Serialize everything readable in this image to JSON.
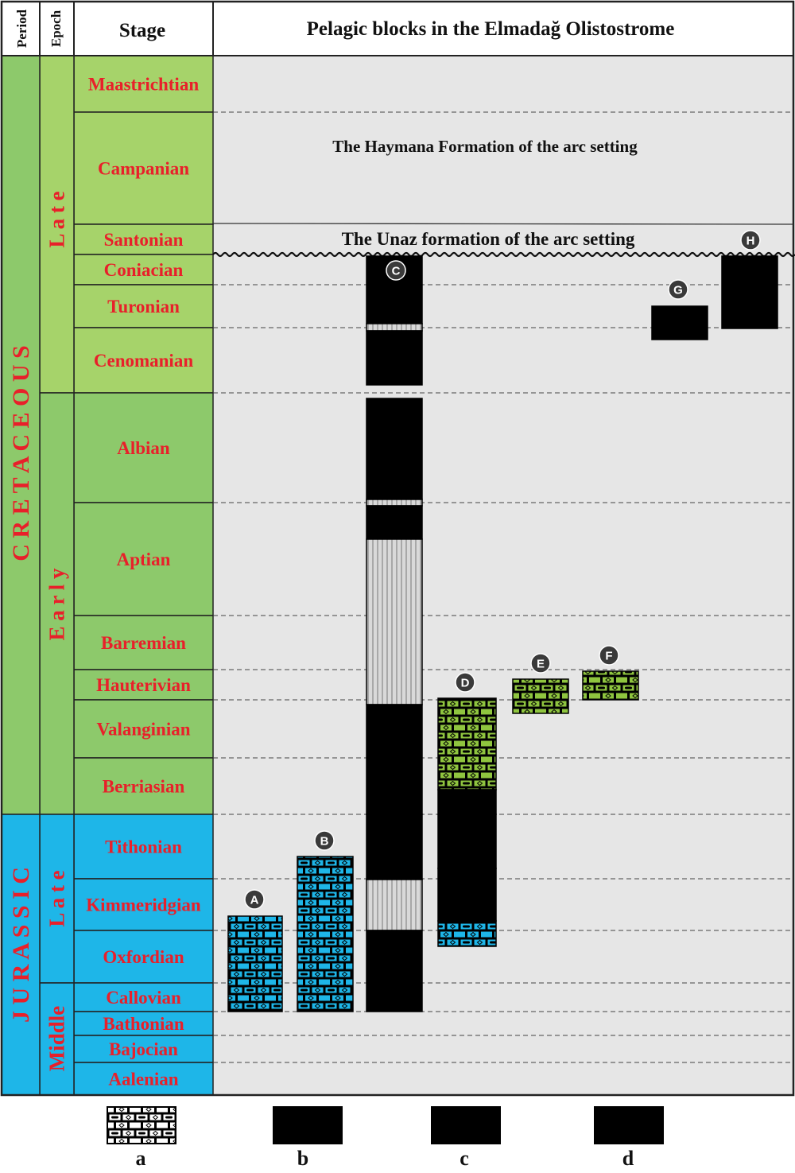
{
  "header": {
    "period": "Period",
    "epoch": "Epoch",
    "stage": "Stage",
    "title": "Pelagic blocks in the Elmadağ Olistostrome"
  },
  "periods": [
    {
      "key": "cretaceous",
      "label": "C R E T A C E O U S",
      "color": "#8dc96b"
    },
    {
      "key": "jurassic",
      "label": "J U R A S S I C",
      "color": "#1eb6e8"
    }
  ],
  "epochs": [
    {
      "key": "late-cretaceous",
      "label": "L a t e",
      "color": "#a6d36a"
    },
    {
      "key": "early-cretaceous",
      "label": "E a r l y",
      "color": "#8dc96b"
    },
    {
      "key": "late-jurassic",
      "label": "L a t e",
      "color": "#1eb6e8"
    },
    {
      "key": "middle-jurassic",
      "label": "Middle",
      "color": "#1eb6e8"
    }
  ],
  "stages": [
    "Maastrichtian",
    "Campanian",
    "Santonian",
    "Coniacian",
    "Turonian",
    "Cenomanian",
    "Albian",
    "Aptian",
    "Barremian",
    "Hauterivian",
    "Valanginian",
    "Berriasian",
    "Tithonian",
    "Kimmeridgian",
    "Oxfordian",
    "Callovian",
    "Bathonian",
    "Bajocian",
    "Aalenian"
  ],
  "formations": {
    "haymana": "The Haymana Formation of the arc setting",
    "unaz": "The Unaz formation of the arc setting"
  },
  "blocks": [
    {
      "label": "A",
      "top_stage": "Oxfordian",
      "base_stage": "Callovian",
      "lithology": "a"
    },
    {
      "label": "B",
      "top_stage": "Tithonian",
      "base_stage": "Callovian",
      "lithology": "a"
    },
    {
      "label": "C",
      "top_stage": "Coniacian",
      "base_stage": "Callovian",
      "lithology": "b, c, d"
    },
    {
      "label": "D",
      "top_stage": "Valanginian",
      "base_stage": "Oxfordian",
      "lithology": "a, b"
    },
    {
      "label": "E",
      "top_stage": "Hauterivian",
      "base_stage": "Valanginian",
      "lithology": "a"
    },
    {
      "label": "F",
      "top_stage": "Hauterivian",
      "base_stage": "Hauterivian",
      "lithology": "a"
    },
    {
      "label": "G",
      "top_stage": "Turonian",
      "base_stage": "Turonian",
      "lithology": "d"
    },
    {
      "label": "H",
      "top_stage": "Coniacian",
      "base_stage": "Turonian",
      "lithology": "d"
    }
  ],
  "legend": [
    "a",
    "b",
    "c",
    "d"
  ],
  "colors": {
    "cretaceous_late": "#a6d36a",
    "cretaceous_early": "#8dc96b",
    "jurassic": "#1eb6e8",
    "panel": "#e6e6e6",
    "stage_text": "#e8202a"
  }
}
